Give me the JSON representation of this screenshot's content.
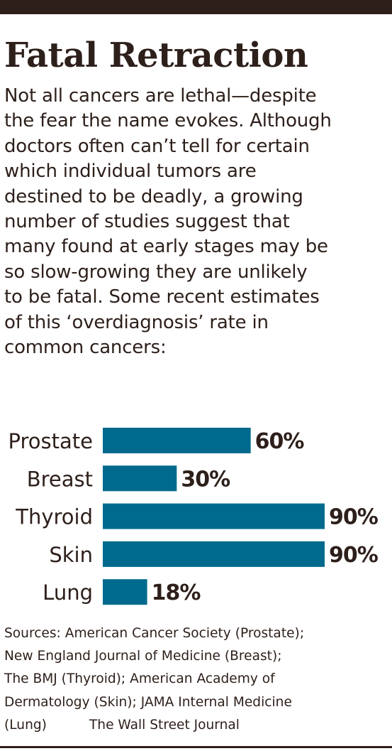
{
  "title": "Fatal Retraction",
  "intro_lines": [
    "Not all cancers are lethal—despite",
    "the fear the name evokes. Although",
    "doctors often can’t tell for certain",
    "which individual tumors are",
    "destined to be deadly, a growing",
    "number of studies suggest that",
    "many found at early stages may be",
    "so slow-growing they are unlikely",
    "to be fatal.  Some recent estimates",
    "of this ‘overdiagnosis’ rate in",
    "common cancers:"
  ],
  "chart_data": {
    "type": "bar",
    "orientation": "horizontal",
    "categories": [
      "Prostate",
      "Breast",
      "Thyroid",
      "Skin",
      "Lung"
    ],
    "values": [
      60,
      30,
      90,
      90,
      18
    ],
    "value_labels": [
      "60%",
      "30%",
      "90%",
      "90%",
      "18%"
    ],
    "unit": "%",
    "xlim": [
      0,
      90
    ],
    "bar_color": "#006a8e",
    "grid": false
  },
  "sources_lines": [
    "Sources: American Cancer Society (Prostate);",
    "New England Journal of Medicine (Breast);",
    "The BMJ (Thyroid); American Academy of",
    "Dermatology (Skin); JAMA Internal Medicine"
  ],
  "sources_last": "(Lung)",
  "credit": "The Wall Street Journal"
}
